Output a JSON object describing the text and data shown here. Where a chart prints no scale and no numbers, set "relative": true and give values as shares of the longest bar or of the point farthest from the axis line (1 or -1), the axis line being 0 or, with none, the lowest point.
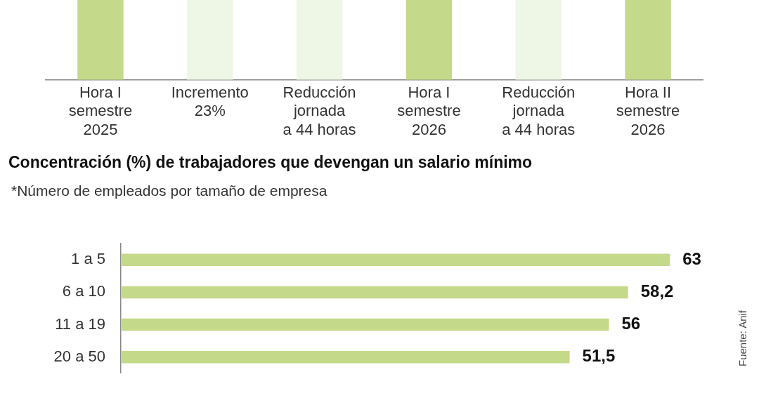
{
  "chart_data": [
    {
      "type": "bar",
      "relative": true,
      "categories": [
        "Hora I\nsemestre\n2025",
        "Incremento\n23%",
        "Reducción\njornada\na 44 horas",
        "Hora I\nsemestre\n2026",
        "Reducción\njornada\na 44 horas",
        "Hora II\nsemestre\n2026"
      ],
      "values": [
        1,
        1,
        1,
        1,
        1,
        1
      ],
      "colors": [
        "#c5d98a",
        "#eef6e6",
        "#eef6e6",
        "#c5d98a",
        "#eef6e6",
        "#c5d98a"
      ]
    },
    {
      "type": "bar",
      "orientation": "horizontal",
      "title": "Concentración (%) de trabajadores que devengan un salario mínimo",
      "subtitle": "*Número de empleados por tamaño de empresa",
      "categories": [
        "1 a 5",
        "6 a 10",
        "11 a 19",
        "20 a 50"
      ],
      "values": [
        63,
        58.2,
        56,
        51.5
      ],
      "value_labels": [
        "63",
        "58,2",
        "56",
        "51,5"
      ],
      "color": "#c5d98a",
      "annotations": [
        "Fuente: Anif"
      ]
    }
  ]
}
